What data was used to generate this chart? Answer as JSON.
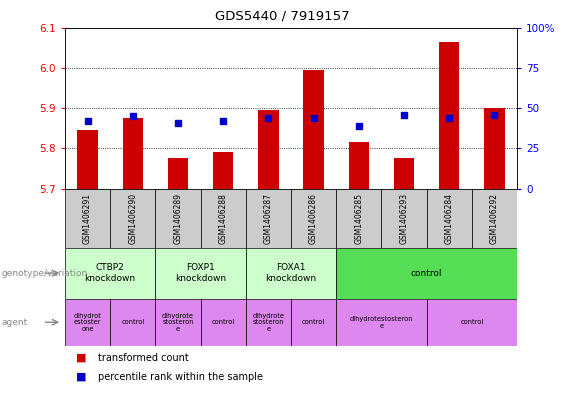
{
  "title": "GDS5440 / 7919157",
  "samples": [
    "GSM1406291",
    "GSM1406290",
    "GSM1406289",
    "GSM1406288",
    "GSM1406287",
    "GSM1406286",
    "GSM1406285",
    "GSM1406293",
    "GSM1406284",
    "GSM1406292"
  ],
  "red_values": [
    5.845,
    5.875,
    5.775,
    5.79,
    5.895,
    5.995,
    5.815,
    5.775,
    6.065,
    5.9
  ],
  "blue_values_pct": [
    42,
    45,
    41,
    42,
    44,
    44,
    39,
    46,
    44,
    46
  ],
  "ylim_left": [
    5.7,
    6.1
  ],
  "ylim_right": [
    0,
    100
  ],
  "yticks_left": [
    5.7,
    5.8,
    5.9,
    6.0,
    6.1
  ],
  "yticks_right": [
    0,
    25,
    50,
    75,
    100
  ],
  "genotype_groups": [
    {
      "label": "CTBP2\nknockdown",
      "start": 0,
      "end": 2,
      "color": "#ccffcc"
    },
    {
      "label": "FOXP1\nknockdown",
      "start": 2,
      "end": 4,
      "color": "#ccffcc"
    },
    {
      "label": "FOXA1\nknockdown",
      "start": 4,
      "end": 6,
      "color": "#ccffcc"
    },
    {
      "label": "control",
      "start": 6,
      "end": 10,
      "color": "#55dd55"
    }
  ],
  "agent_groups": [
    {
      "label": "dihydrot\nestoster\none",
      "start": 0,
      "end": 1,
      "color": "#dd88ee"
    },
    {
      "label": "control",
      "start": 1,
      "end": 2,
      "color": "#dd88ee"
    },
    {
      "label": "dihydrote\nstosteron\ne",
      "start": 2,
      "end": 3,
      "color": "#dd88ee"
    },
    {
      "label": "control",
      "start": 3,
      "end": 4,
      "color": "#dd88ee"
    },
    {
      "label": "dihydrote\nstosteron\ne",
      "start": 4,
      "end": 5,
      "color": "#dd88ee"
    },
    {
      "label": "control",
      "start": 5,
      "end": 6,
      "color": "#dd88ee"
    },
    {
      "label": "dihydrotestosteron\ne",
      "start": 6,
      "end": 8,
      "color": "#dd88ee"
    },
    {
      "label": "control",
      "start": 8,
      "end": 10,
      "color": "#dd88ee"
    }
  ],
  "bar_color": "#cc0000",
  "dot_color": "#0000cc",
  "background_color": "#ffffff",
  "sample_bg": "#cccccc",
  "fig_width": 5.65,
  "fig_height": 3.93,
  "dpi": 100
}
